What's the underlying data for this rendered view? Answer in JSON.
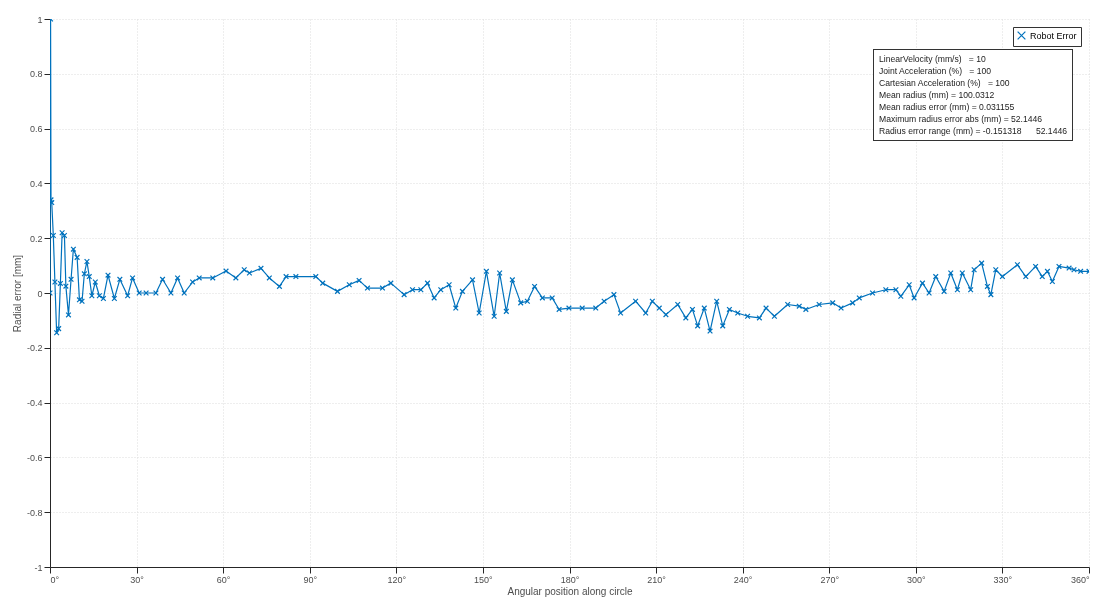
{
  "chart_data": {
    "type": "line",
    "xlabel": "Angular position along circle",
    "ylabel": "Radial error [mm]",
    "x": [
      0,
      0.2,
      0.35,
      0.6,
      1.15,
      1.7,
      2.3,
      3.0,
      3.6,
      4.2,
      5.0,
      5.5,
      6.4,
      7.3,
      8.1,
      9.4,
      10.2,
      11.1,
      11.9,
      12.8,
      13.6,
      14.5,
      15.7,
      17.1,
      18.5,
      20.1,
      22.3,
      24.2,
      26.9,
      28.6,
      30.9,
      33.3,
      36.7,
      39,
      41.9,
      44.2,
      46.5,
      49.4,
      51.7,
      56.4,
      61,
      64.4,
      67.3,
      69.1,
      73.1,
      76,
      79.5,
      81.8,
      85.2,
      92.1,
      94.5,
      99.6,
      103.7,
      107.1,
      110,
      115.2,
      118.1,
      122.7,
      125.6,
      128.5,
      130.8,
      133.1,
      135.4,
      138.3,
      140.6,
      142.9,
      146.4,
      148.7,
      151.2,
      153.9,
      155.8,
      158.1,
      160.2,
      163.1,
      165.4,
      167.9,
      170.6,
      174,
      176.4,
      179.8,
      184.4,
      189.1,
      192,
      195.4,
      197.7,
      202.9,
      206.4,
      208.7,
      211.1,
      213.4,
      217.5,
      220.3,
      222.6,
      224.4,
      226.7,
      228.7,
      231,
      233.1,
      235.4,
      238.3,
      241.7,
      245.8,
      248.1,
      251,
      255.6,
      259.6,
      261.9,
      266.5,
      271.2,
      274.1,
      278.1,
      280.4,
      285,
      289.6,
      293.1,
      294.8,
      297.7,
      299.4,
      302.3,
      304.6,
      306.9,
      309.8,
      312.1,
      314.4,
      316.1,
      319,
      320.2,
      322.8,
      324.8,
      326,
      327.7,
      330,
      335.2,
      338.1,
      341.5,
      343.8,
      345.6,
      347.3,
      349.6,
      353.1,
      354.8,
      357.1,
      360
    ],
    "series": [
      {
        "name": "Robot Error",
        "color": "#0072bd",
        "values": [
          0,
          1,
          0.34,
          0.33,
          0.21,
          0.04,
          -0.145,
          -0.13,
          0.035,
          0.22,
          0.21,
          0.025,
          -0.08,
          0.05,
          0.16,
          0.13,
          -0.025,
          -0.03,
          0.07,
          0.115,
          0.06,
          -0.01,
          0.04,
          -0.01,
          -0.02,
          0.065,
          -0.02,
          0.05,
          -0.01,
          0.055,
          0,
          0,
          0,
          0.05,
          0,
          0.055,
          0,
          0.04,
          0.055,
          0.055,
          0.08,
          0.055,
          0.085,
          0.073,
          0.09,
          0.055,
          0.024,
          0.06,
          0.06,
          0.06,
          0.036,
          0.006,
          0.03,
          0.046,
          0.018,
          0.018,
          0.036,
          -0.006,
          0.012,
          0.012,
          0.036,
          -0.018,
          0.012,
          0.03,
          -0.055,
          0.006,
          0.048,
          -0.073,
          0.079,
          -0.085,
          0.073,
          -0.067,
          0.048,
          -0.036,
          -0.03,
          0.024,
          -0.018,
          -0.018,
          -0.06,
          -0.055,
          -0.055,
          -0.055,
          -0.03,
          -0.006,
          -0.073,
          -0.03,
          -0.073,
          -0.03,
          -0.055,
          -0.079,
          -0.042,
          -0.091,
          -0.06,
          -0.12,
          -0.055,
          -0.139,
          -0.03,
          -0.12,
          -0.06,
          -0.073,
          -0.085,
          -0.091,
          -0.055,
          -0.085,
          -0.042,
          -0.048,
          -0.06,
          -0.042,
          -0.036,
          -0.055,
          -0.036,
          -0.018,
          0,
          0.012,
          0.012,
          -0.012,
          0.03,
          -0.018,
          0.036,
          0,
          0.06,
          0.006,
          0.073,
          0.012,
          0.073,
          0.012,
          0.085,
          0.109,
          0.024,
          -0.006,
          0.085,
          0.06,
          0.103,
          0.06,
          0.097,
          0.06,
          0.079,
          0.042,
          0.097,
          0.091,
          0.085,
          0.079,
          0.079
        ]
      }
    ],
    "xlim": [
      0,
      360
    ],
    "ylim": [
      -1,
      1
    ],
    "xticks": [
      {
        "value": 0,
        "label": "0°"
      },
      {
        "value": 30,
        "label": "30°"
      },
      {
        "value": 60,
        "label": "60°"
      },
      {
        "value": 90,
        "label": "90°"
      },
      {
        "value": 120,
        "label": "120°"
      },
      {
        "value": 150,
        "label": "150°"
      },
      {
        "value": 180,
        "label": "180°"
      },
      {
        "value": 210,
        "label": "210°"
      },
      {
        "value": 240,
        "label": "240°"
      },
      {
        "value": 270,
        "label": "270°"
      },
      {
        "value": 300,
        "label": "300°"
      },
      {
        "value": 330,
        "label": "330°"
      },
      {
        "value": 360,
        "label": "360°"
      }
    ],
    "yticks": [
      -1,
      -0.8,
      -0.6,
      -0.4,
      -0.2,
      0,
      0.2,
      0.4,
      0.6,
      0.8,
      1
    ],
    "annotations": [
      "LinearVelocity (mm/s)   = 10",
      "Joint Acceleration (%)   = 100",
      "Cartesian Acceleration (%)   = 100",
      "Mean radius (mm) = 100.0312",
      "Mean radius error (mm) = 0.031155",
      "Maximum radius error abs (mm) = 52.1446",
      "Radius error range (mm) = -0.151318      52.1446"
    ],
    "grid": true,
    "legend": "top right",
    "marker": "cross",
    "line_style": "solid"
  }
}
